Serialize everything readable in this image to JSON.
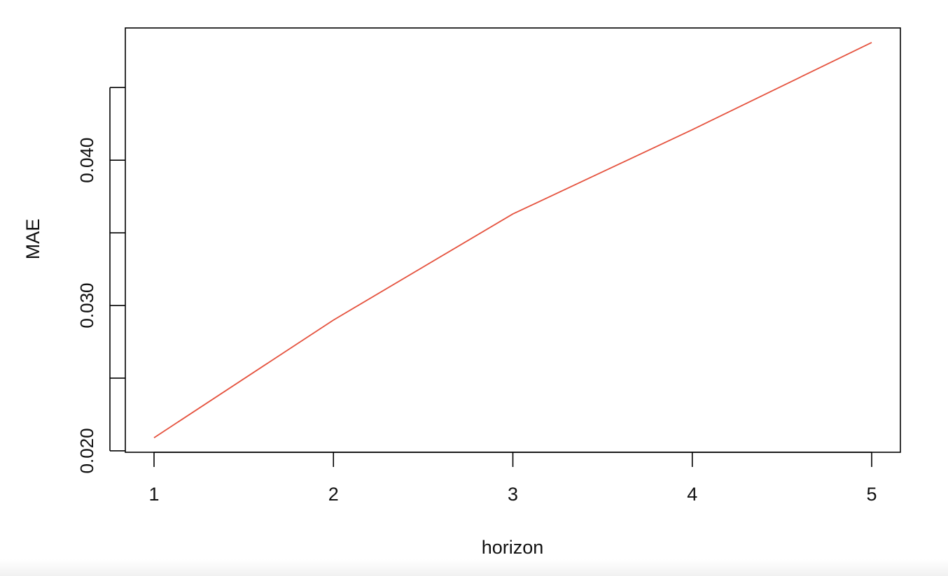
{
  "chart_data": {
    "type": "line",
    "xlabel": "horizon",
    "ylabel": "MAE",
    "x_ticks": [
      1,
      2,
      3,
      4,
      5
    ],
    "x_tick_labels": [
      "1",
      "2",
      "3",
      "4",
      "5"
    ],
    "y_ticks": [
      0.02,
      0.025,
      0.03,
      0.035,
      0.04,
      0.045
    ],
    "y_tick_labels": [
      "0.020",
      "",
      "0.030",
      "",
      "0.040",
      ""
    ],
    "xlim": [
      0.84,
      5.16
    ],
    "ylim": [
      0.0199,
      0.0491
    ],
    "grid": false,
    "series": [
      {
        "color": "#e5533f",
        "x": [
          1,
          2,
          3,
          4,
          5
        ],
        "values": [
          0.0209,
          0.029,
          0.0363,
          0.0421,
          0.0481
        ]
      }
    ]
  }
}
